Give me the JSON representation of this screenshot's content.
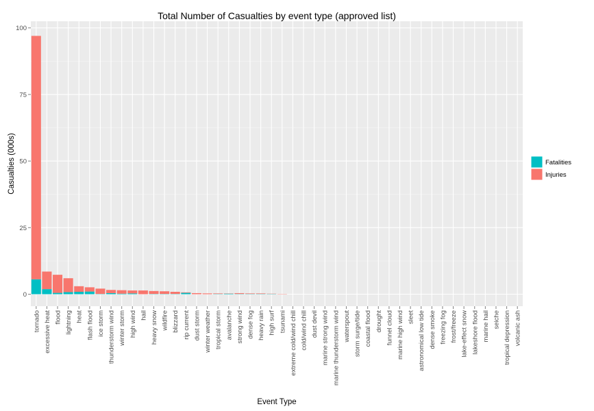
{
  "chart_data": {
    "type": "bar",
    "stacked": true,
    "title": "Total Number of Casualties by event type (approved list)",
    "xlabel": "Event Type",
    "ylabel": "Casualties (000s)",
    "ylim": [
      -4.5,
      102.5
    ],
    "yticks": [
      0,
      25,
      50,
      75,
      100
    ],
    "grid": true,
    "legend_position": "right",
    "categories": [
      "tornado",
      "excessive heat",
      "flood",
      "lightning",
      "heat",
      "flash flood",
      "ice storm",
      "thunderstorm wind",
      "winter storm",
      "high wind",
      "hail",
      "heavy snow",
      "wildfire",
      "blizzard",
      "rip current",
      "dust storm",
      "winter weather",
      "tropical storm",
      "avalanche",
      "strong wind",
      "dense fog",
      "heavy rain",
      "high surf",
      "tsunami",
      "extreme cold/wind chill",
      "cold/wind chill",
      "dust devil",
      "marine strong wind",
      "marine thunderstorm wind",
      "waterspout",
      "storm surge/tide",
      "coastal flood",
      "drought",
      "funnel cloud",
      "marine high wind",
      "sleet",
      "astronomical low tide",
      "dense smoke",
      "freezing fog",
      "frost/freeze",
      "lake-effect snow",
      "lakeshore flood",
      "marine hail",
      "seiche",
      "tropical depression",
      "volcanic ash"
    ],
    "series": [
      {
        "name": "Fatalities",
        "color": "#00BFC4",
        "values": [
          5.6,
          1.9,
          0.5,
          0.8,
          0.9,
          1.0,
          0.1,
          0.4,
          0.2,
          0.3,
          0.0,
          0.1,
          0.1,
          0.1,
          0.5,
          0.0,
          0.0,
          0.1,
          0.2,
          0.1,
          0.1,
          0.1,
          0.1,
          0.0,
          0,
          0,
          0,
          0,
          0,
          0,
          0,
          0,
          0,
          0,
          0,
          0,
          0,
          0,
          0,
          0,
          0,
          0,
          0,
          0,
          0,
          0
        ]
      },
      {
        "name": "Injuries",
        "color": "#F8766D",
        "values": [
          91.4,
          6.6,
          6.8,
          5.2,
          2.1,
          1.6,
          2.0,
          1.2,
          1.3,
          1.1,
          1.4,
          1.1,
          1.0,
          0.8,
          0.2,
          0.4,
          0.3,
          0.2,
          0.1,
          0.3,
          0.2,
          0.2,
          0.1,
          0.1,
          0,
          0,
          0,
          0,
          0,
          0,
          0,
          0,
          0,
          0,
          0,
          0,
          0,
          0,
          0,
          0,
          0,
          0,
          0,
          0,
          0,
          0
        ]
      }
    ]
  }
}
